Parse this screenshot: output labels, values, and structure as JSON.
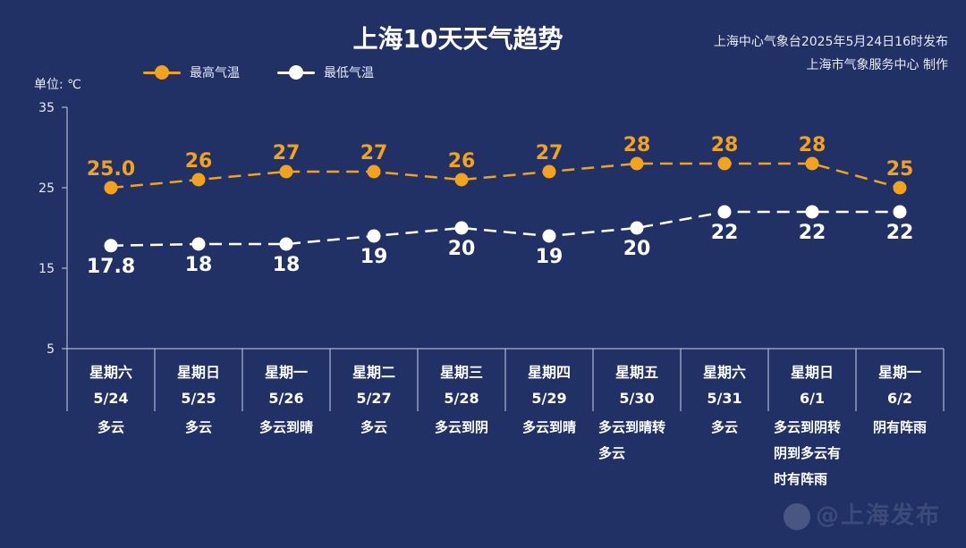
{
  "title": "上海10天天气趋势",
  "source": {
    "line1": "上海中心气象台2025年5月24日16时发布",
    "line2": "上海市气象服务中心 制作"
  },
  "unit_label": "单位: ℃",
  "colors": {
    "background": "#213166",
    "high": "#f2a31b",
    "low": "#ffffff",
    "axis": "#c9d2ea"
  },
  "chart_data": {
    "type": "line",
    "title": "上海10天天气趋势",
    "ylabel": "单位: ℃",
    "ylim": [
      5,
      35
    ],
    "yticks": [
      5,
      15,
      25,
      35
    ],
    "grid": false,
    "legend_position": "top-left",
    "weekdays": [
      "星期六",
      "星期日",
      "星期一",
      "星期二",
      "星期三",
      "星期四",
      "星期五",
      "星期六",
      "星期日",
      "星期一"
    ],
    "dates": [
      "5/24",
      "5/25",
      "5/26",
      "5/27",
      "5/28",
      "5/29",
      "5/30",
      "5/31",
      "6/1",
      "6/2"
    ],
    "weather": [
      [
        "多云"
      ],
      [
        "多云"
      ],
      [
        "多云到晴"
      ],
      [
        "多云"
      ],
      [
        "多云到阴"
      ],
      [
        "多云到晴"
      ],
      [
        "多云到晴转",
        "多云"
      ],
      [
        "多云"
      ],
      [
        "多云到阴转",
        "阴到多云有",
        "时有阵雨"
      ],
      [
        "阴有阵雨"
      ]
    ],
    "series": [
      {
        "name": "最高气温",
        "values": [
          25.0,
          26,
          27,
          27,
          26,
          27,
          28,
          28,
          28,
          25
        ],
        "labels": [
          "25.0",
          "26",
          "27",
          "27",
          "26",
          "27",
          "28",
          "28",
          "28",
          "25"
        ]
      },
      {
        "name": "最低气温",
        "values": [
          17.8,
          18,
          18,
          19,
          20,
          19,
          20,
          22,
          22,
          22
        ],
        "labels": [
          "17.8",
          "18",
          "18",
          "19",
          "20",
          "19",
          "20",
          "22",
          "22",
          "22"
        ]
      }
    ]
  },
  "watermark": "@上海发布"
}
